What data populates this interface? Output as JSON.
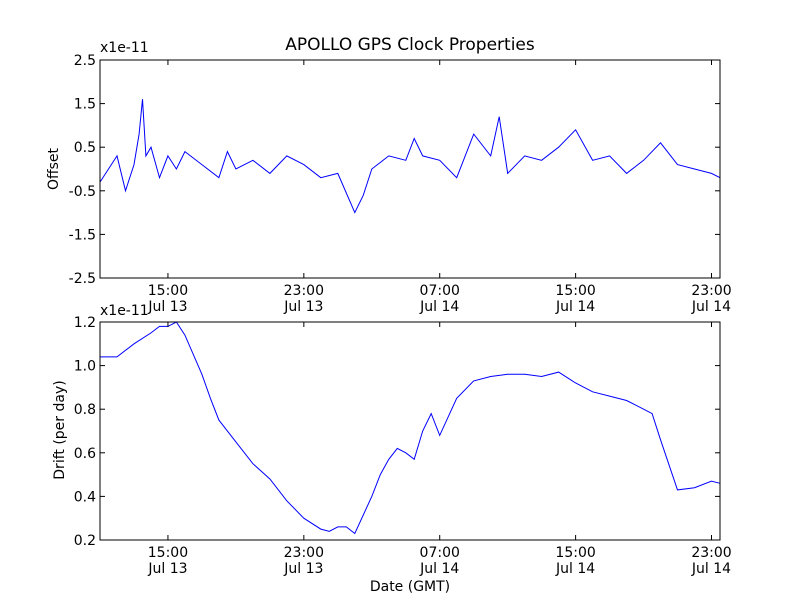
{
  "title": "APOLLO GPS Clock Properties",
  "colors": {
    "line": "#0000ff",
    "axes": "#000000",
    "background": "#ffffff"
  },
  "chart_data": [
    {
      "type": "line",
      "title": "APOLLO GPS Clock Properties",
      "ylabel": "Offset",
      "y_multiplier": "x1e-11",
      "ylim": [
        -2.5,
        2.5
      ],
      "yticks": [
        -2.5,
        -1.5,
        -0.5,
        0.5,
        1.5,
        2.5
      ],
      "ytick_labels": [
        "-2.5",
        "-1.5",
        "-0.5",
        "0.5",
        "1.5",
        "2.5"
      ],
      "x_unit": "hours since 2013-07-13 11:00 GMT",
      "xlim": [
        0,
        36.5
      ],
      "xticks": [
        4,
        12,
        20,
        28,
        36
      ],
      "xtick_labels": [
        [
          "15:00",
          "Jul 13"
        ],
        [
          "23:00",
          "Jul 13"
        ],
        [
          "07:00",
          "Jul 14"
        ],
        [
          "15:00",
          "Jul 14"
        ],
        [
          "23:00",
          "Jul 14"
        ]
      ],
      "grid": false,
      "series": [
        {
          "x": [
            0,
            0.5,
            1,
            1.5,
            2,
            2.3,
            2.5,
            2.7,
            3,
            3.5,
            4,
            4.5,
            5,
            6,
            7,
            7.5,
            8,
            9,
            10,
            11,
            12,
            13,
            14,
            15,
            15.5,
            16,
            17,
            18,
            18.5,
            19,
            20,
            21,
            22,
            23,
            23.5,
            24,
            25,
            26,
            27,
            28,
            29,
            30,
            31,
            32,
            33,
            34,
            35,
            36,
            36.5
          ],
          "values": [
            -0.3,
            0.0,
            0.3,
            -0.5,
            0.1,
            0.8,
            1.6,
            0.3,
            0.5,
            -0.2,
            0.3,
            0.0,
            0.4,
            0.1,
            -0.2,
            0.4,
            0.0,
            0.2,
            -0.1,
            0.3,
            0.1,
            -0.2,
            -0.1,
            -1.0,
            -0.6,
            0.0,
            0.3,
            0.2,
            0.7,
            0.3,
            0.2,
            -0.2,
            0.8,
            0.3,
            1.2,
            -0.1,
            0.3,
            0.2,
            0.5,
            0.9,
            0.2,
            0.3,
            -0.1,
            0.2,
            0.6,
            0.1,
            0.0,
            -0.1,
            -0.2
          ]
        }
      ]
    },
    {
      "type": "line",
      "ylabel": "Drift (per day)",
      "xlabel": "Date (GMT)",
      "y_multiplier": "x1e-11",
      "ylim": [
        0.2,
        1.2
      ],
      "yticks": [
        0.2,
        0.4,
        0.6,
        0.8,
        1.0,
        1.2
      ],
      "ytick_labels": [
        "0.2",
        "0.4",
        "0.6",
        "0.8",
        "1.0",
        "1.2"
      ],
      "x_unit": "hours since 2013-07-13 11:00 GMT",
      "xlim": [
        0,
        36.5
      ],
      "xticks": [
        4,
        12,
        20,
        28,
        36
      ],
      "xtick_labels": [
        [
          "15:00",
          "Jul 13"
        ],
        [
          "23:00",
          "Jul 13"
        ],
        [
          "07:00",
          "Jul 14"
        ],
        [
          "15:00",
          "Jul 14"
        ],
        [
          "23:00",
          "Jul 14"
        ]
      ],
      "grid": false,
      "series": [
        {
          "x": [
            0,
            0.5,
            1,
            2,
            3,
            3.5,
            4,
            4.5,
            5,
            6,
            6.5,
            7,
            8,
            9,
            10,
            11,
            12,
            13,
            13.5,
            14,
            14.5,
            15,
            16,
            16.5,
            17,
            17.5,
            18,
            18.5,
            19,
            19.5,
            20,
            21,
            22,
            23,
            24,
            25,
            26,
            27,
            28,
            29,
            30,
            31,
            31.5,
            32,
            32.5,
            33,
            34,
            35,
            36,
            36.5
          ],
          "values": [
            1.04,
            1.04,
            1.04,
            1.1,
            1.15,
            1.18,
            1.18,
            1.2,
            1.14,
            0.96,
            0.85,
            0.75,
            0.65,
            0.55,
            0.48,
            0.38,
            0.3,
            0.25,
            0.24,
            0.26,
            0.26,
            0.23,
            0.4,
            0.5,
            0.57,
            0.62,
            0.6,
            0.57,
            0.7,
            0.78,
            0.68,
            0.85,
            0.93,
            0.95,
            0.96,
            0.96,
            0.95,
            0.97,
            0.92,
            0.88,
            0.86,
            0.84,
            0.82,
            0.8,
            0.78,
            0.66,
            0.43,
            0.44,
            0.47,
            0.46
          ]
        }
      ]
    }
  ]
}
